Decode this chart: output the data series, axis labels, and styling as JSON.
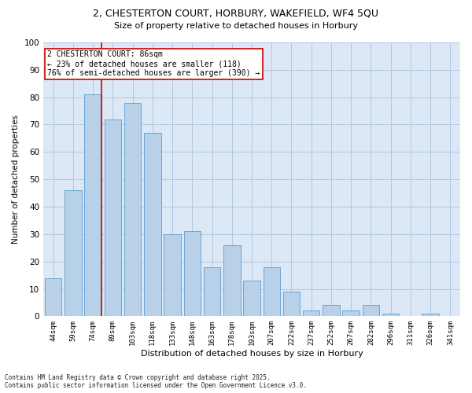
{
  "title_line1": "2, CHESTERTON COURT, HORBURY, WAKEFIELD, WF4 5QU",
  "title_line2": "Size of property relative to detached houses in Horbury",
  "xlabel": "Distribution of detached houses by size in Horbury",
  "ylabel": "Number of detached properties",
  "bar_color": "#b8d0e8",
  "bar_edge_color": "#5a9fd4",
  "background_color": "#ffffff",
  "plot_bg_color": "#dce8f5",
  "grid_color": "#b0c8e0",
  "categories": [
    "44sqm",
    "59sqm",
    "74sqm",
    "89sqm",
    "103sqm",
    "118sqm",
    "133sqm",
    "148sqm",
    "163sqm",
    "178sqm",
    "193sqm",
    "207sqm",
    "222sqm",
    "237sqm",
    "252sqm",
    "267sqm",
    "282sqm",
    "296sqm",
    "311sqm",
    "326sqm",
    "341sqm"
  ],
  "values": [
    14,
    46,
    81,
    72,
    78,
    67,
    30,
    31,
    18,
    26,
    13,
    18,
    9,
    2,
    4,
    2,
    4,
    1,
    0,
    1,
    0
  ],
  "ylim": [
    0,
    100
  ],
  "yticks": [
    0,
    10,
    20,
    30,
    40,
    50,
    60,
    70,
    80,
    90,
    100
  ],
  "annotation_title": "2 CHESTERTON COURT: 86sqm",
  "annotation_line2": "← 23% of detached houses are smaller (118)",
  "annotation_line3": "76% of semi-detached houses are larger (390) →",
  "annotation_box_color": "#ffffff",
  "annotation_border_color": "#cc0000",
  "red_line_color": "#cc0000",
  "footer_line1": "Contains HM Land Registry data © Crown copyright and database right 2025.",
  "footer_line2": "Contains public sector information licensed under the Open Government Licence v3.0."
}
